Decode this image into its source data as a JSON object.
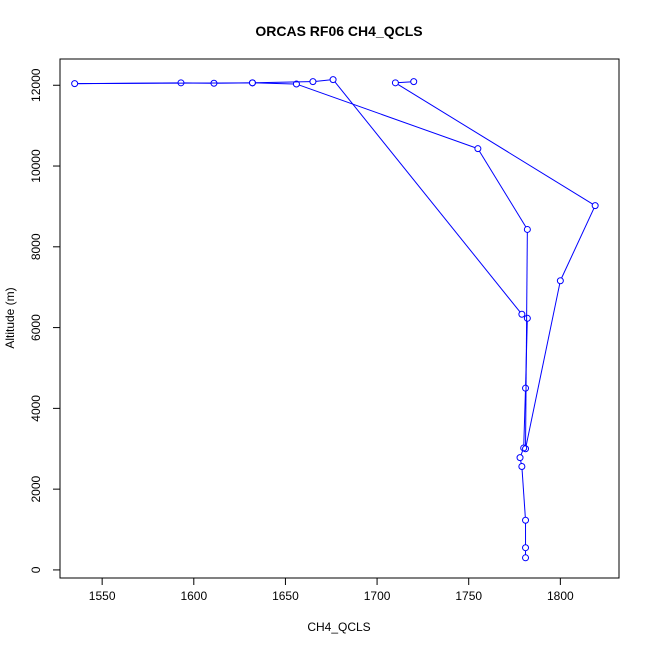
{
  "chart_data": {
    "type": "line",
    "title": "ORCAS RF06 CH4_QCLS",
    "xlabel": "CH4_QCLS",
    "ylabel": "Altitude (m)",
    "xlim": [
      1527,
      1832
    ],
    "ylim": [
      -200,
      12650
    ],
    "xticks": [
      1550,
      1600,
      1650,
      1700,
      1750,
      1800
    ],
    "yticks": [
      0,
      2000,
      4000,
      6000,
      8000,
      10000,
      12000
    ],
    "series": [
      {
        "color": "#0000ff",
        "marker": "open-circle",
        "x": [
          1781,
          1781,
          1781,
          1779,
          1778,
          1780,
          1781,
          1782,
          1779,
          1676,
          1665,
          1632,
          1611,
          1593,
          1535,
          1632,
          1656,
          1755,
          1782,
          1781,
          1800,
          1819,
          1710,
          1720
        ],
        "y": [
          300,
          550,
          1230,
          2560,
          2780,
          3020,
          4500,
          6230,
          6330,
          12140,
          12090,
          12060,
          12050,
          12060,
          12040,
          12060,
          12030,
          10430,
          8430,
          3000,
          7160,
          9020,
          12060,
          12090
        ]
      }
    ]
  }
}
